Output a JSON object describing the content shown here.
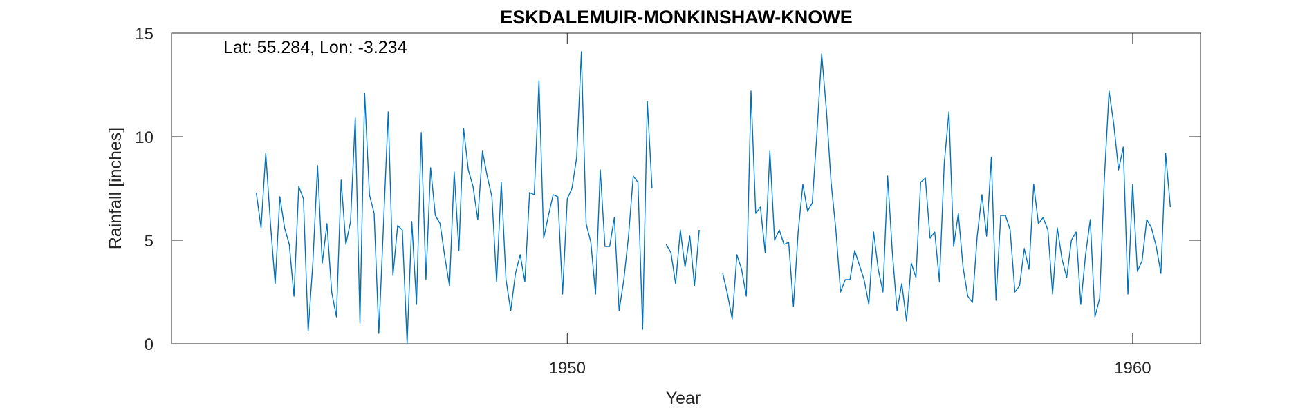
{
  "chart_data": {
    "type": "line",
    "title": "ESKDALEMUIR-MONKINSHAW-KNOWE",
    "annotation": "Lat: 55.284, Lon: -3.234",
    "xlabel": "Year",
    "ylabel": "Rainfall [inches]",
    "xlim": [
      1943.0,
      1961.2
    ],
    "ylim": [
      0,
      15
    ],
    "xticks": [
      1950,
      1960
    ],
    "yticks": [
      0,
      5,
      10,
      15
    ],
    "grid": false,
    "line_color": "#0072BD",
    "start": "1944-07",
    "monthly_values": [
      7.3,
      5.6,
      9.2,
      5.8,
      2.9,
      7.1,
      5.6,
      4.8,
      2.3,
      7.6,
      7.0,
      0.6,
      3.9,
      8.6,
      3.9,
      5.8,
      2.5,
      1.3,
      7.9,
      4.8,
      5.9,
      10.9,
      1.0,
      12.1,
      7.2,
      6.3,
      0.5,
      5.8,
      11.2,
      3.3,
      5.7,
      5.5,
      0.0,
      5.9,
      1.9,
      10.2,
      3.1,
      8.5,
      6.2,
      5.8,
      4.2,
      2.8,
      8.3,
      4.5,
      10.4,
      8.4,
      7.6,
      6.0,
      9.3,
      8.1,
      7.1,
      3.0,
      7.8,
      3.1,
      1.6,
      3.4,
      4.3,
      3.0,
      7.3,
      7.2,
      12.7,
      5.1,
      6.2,
      7.2,
      7.1,
      2.4,
      7.0,
      7.5,
      9.0,
      14.1,
      5.8,
      4.9,
      2.4,
      8.4,
      4.7,
      4.7,
      6.1,
      1.6,
      3.1,
      5.2,
      8.1,
      7.8,
      0.7,
      11.7,
      7.5,
      null,
      null,
      4.8,
      4.4,
      2.9,
      5.5,
      3.7,
      5.2,
      2.8,
      5.5,
      null,
      null,
      null,
      null,
      3.4,
      2.4,
      1.2,
      4.3,
      3.6,
      2.3,
      12.2,
      6.3,
      6.6,
      4.4,
      9.3,
      5.0,
      5.5,
      4.8,
      4.9,
      1.8,
      5.4,
      7.7,
      6.4,
      6.8,
      10.2,
      14.0,
      11.3,
      7.8,
      5.5,
      2.5,
      3.1,
      3.1,
      4.5,
      3.8,
      3.1,
      1.9,
      5.4,
      3.6,
      2.5,
      8.1,
      4.4,
      1.6,
      2.9,
      1.1,
      3.9,
      3.2,
      7.8,
      8.0,
      5.1,
      5.4,
      3.0,
      8.7,
      11.2,
      4.7,
      6.3,
      3.7,
      2.3,
      2.0,
      5.2,
      7.2,
      5.2,
      9.0,
      2.1,
      6.2,
      6.2,
      5.5,
      2.5,
      2.8,
      4.6,
      3.6,
      7.7,
      5.8,
      6.1,
      5.5,
      2.4,
      5.6,
      4.1,
      3.2,
      5.0,
      5.4,
      1.9,
      4.3,
      6.0,
      1.3,
      2.2,
      8.0,
      12.2,
      10.6,
      8.4,
      9.5,
      2.4,
      7.7,
      3.5,
      4.0,
      6.0,
      5.6,
      4.7,
      3.4,
      9.2,
      6.6
    ]
  }
}
